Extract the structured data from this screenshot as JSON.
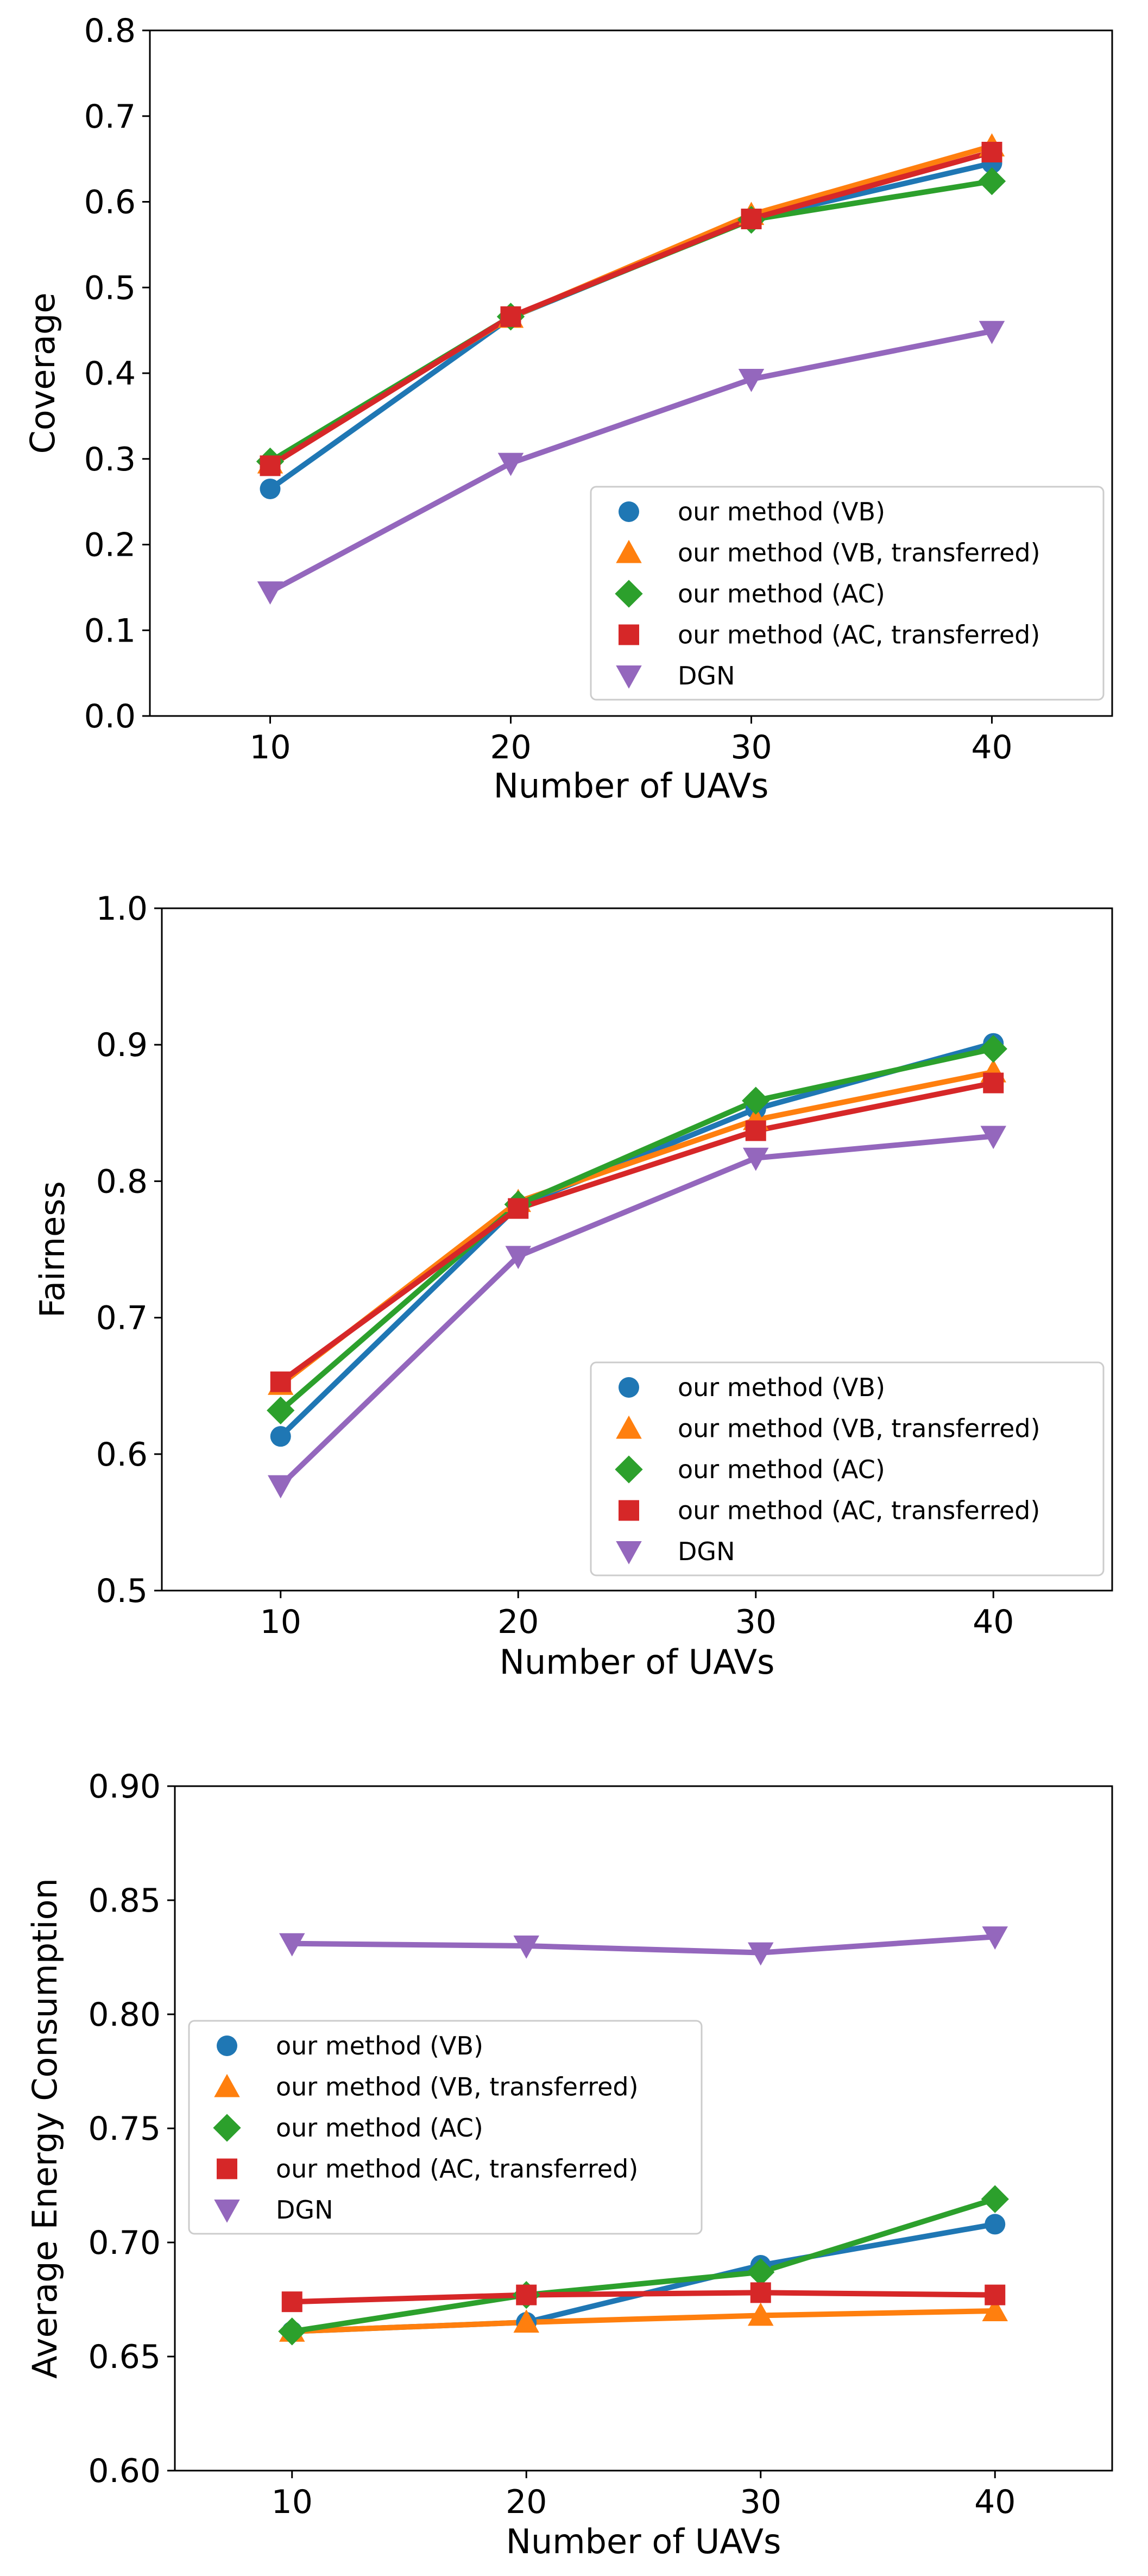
{
  "colors": {
    "blue": "#1f77b4",
    "orange": "#ff7f0e",
    "green": "#2ca02c",
    "red": "#d62728",
    "purple": "#9467bd"
  },
  "chart_data": [
    {
      "type": "line",
      "title": "",
      "xlabel": "Number of UAVs",
      "ylabel": "Coverage",
      "x": [
        10,
        20,
        30,
        40
      ],
      "xlim": [
        5,
        45
      ],
      "xticks": [
        "10",
        "20",
        "30",
        "40"
      ],
      "ylim": [
        0.0,
        0.8
      ],
      "yticks": [
        "0.0",
        "0.1",
        "0.2",
        "0.3",
        "0.4",
        "0.5",
        "0.6",
        "0.7",
        "0.8"
      ],
      "legend_position": "lower-right",
      "series": [
        {
          "name": "our method (VB)",
          "marker": "circle",
          "color": "#1f77b4",
          "values": [
            0.265,
            0.465,
            0.58,
            0.645
          ]
        },
        {
          "name": "our method (VB, transferred)",
          "marker": "triangle-up",
          "color": "#ff7f0e",
          "values": [
            0.295,
            0.465,
            0.585,
            0.665
          ]
        },
        {
          "name": "our method (AC)",
          "marker": "diamond",
          "color": "#2ca02c",
          "values": [
            0.297,
            0.466,
            0.579,
            0.624
          ]
        },
        {
          "name": "our method (AC, transferred)",
          "marker": "square",
          "color": "#d62728",
          "values": [
            0.292,
            0.466,
            0.58,
            0.658
          ]
        },
        {
          "name": "DGN",
          "marker": "triangle-down",
          "color": "#9467bd",
          "values": [
            0.145,
            0.295,
            0.393,
            0.449
          ]
        }
      ]
    },
    {
      "type": "line",
      "title": "",
      "xlabel": "Number of UAVs",
      "ylabel": "Fairness",
      "x": [
        10,
        20,
        30,
        40
      ],
      "xlim": [
        5,
        45
      ],
      "xticks": [
        "10",
        "20",
        "30",
        "40"
      ],
      "ylim": [
        0.5,
        1.0
      ],
      "yticks": [
        "0.5",
        "0.6",
        "0.7",
        "0.8",
        "0.9",
        "1.0"
      ],
      "legend_position": "lower-right",
      "series": [
        {
          "name": "our method (VB)",
          "marker": "circle",
          "color": "#1f77b4",
          "values": [
            0.613,
            0.782,
            0.853,
            0.901
          ]
        },
        {
          "name": "our method (VB, transferred)",
          "marker": "triangle-up",
          "color": "#ff7f0e",
          "values": [
            0.651,
            0.785,
            0.845,
            0.88
          ]
        },
        {
          "name": "our method (AC)",
          "marker": "diamond",
          "color": "#2ca02c",
          "values": [
            0.632,
            0.783,
            0.859,
            0.897
          ]
        },
        {
          "name": "our method (AC, transferred)",
          "marker": "square",
          "color": "#d62728",
          "values": [
            0.653,
            0.78,
            0.837,
            0.872
          ]
        },
        {
          "name": "DGN",
          "marker": "triangle-down",
          "color": "#9467bd",
          "values": [
            0.577,
            0.745,
            0.817,
            0.833
          ]
        }
      ]
    },
    {
      "type": "line",
      "title": "",
      "xlabel": "Number of UAVs",
      "ylabel": "Average Energy Consumption",
      "x": [
        10,
        20,
        30,
        40
      ],
      "xlim": [
        5,
        45
      ],
      "xticks": [
        "10",
        "20",
        "30",
        "40"
      ],
      "ylim": [
        0.6,
        0.9
      ],
      "yticks": [
        "0.60",
        "0.65",
        "0.70",
        "0.75",
        "0.80",
        "0.85",
        "0.90"
      ],
      "legend_position": "center-left",
      "series": [
        {
          "name": "our method (VB)",
          "marker": "circle",
          "color": "#1f77b4",
          "values": [
            0.661,
            0.665,
            0.69,
            0.708
          ]
        },
        {
          "name": "our method (VB, transferred)",
          "marker": "triangle-up",
          "color": "#ff7f0e",
          "values": [
            0.661,
            0.665,
            0.668,
            0.67
          ]
        },
        {
          "name": "our method (AC)",
          "marker": "diamond",
          "color": "#2ca02c",
          "values": [
            0.661,
            0.677,
            0.687,
            0.719
          ]
        },
        {
          "name": "our method (AC, transferred)",
          "marker": "square",
          "color": "#d62728",
          "values": [
            0.674,
            0.677,
            0.678,
            0.677
          ]
        },
        {
          "name": "DGN",
          "marker": "triangle-down",
          "color": "#9467bd",
          "values": [
            0.831,
            0.83,
            0.827,
            0.834
          ]
        }
      ]
    }
  ]
}
